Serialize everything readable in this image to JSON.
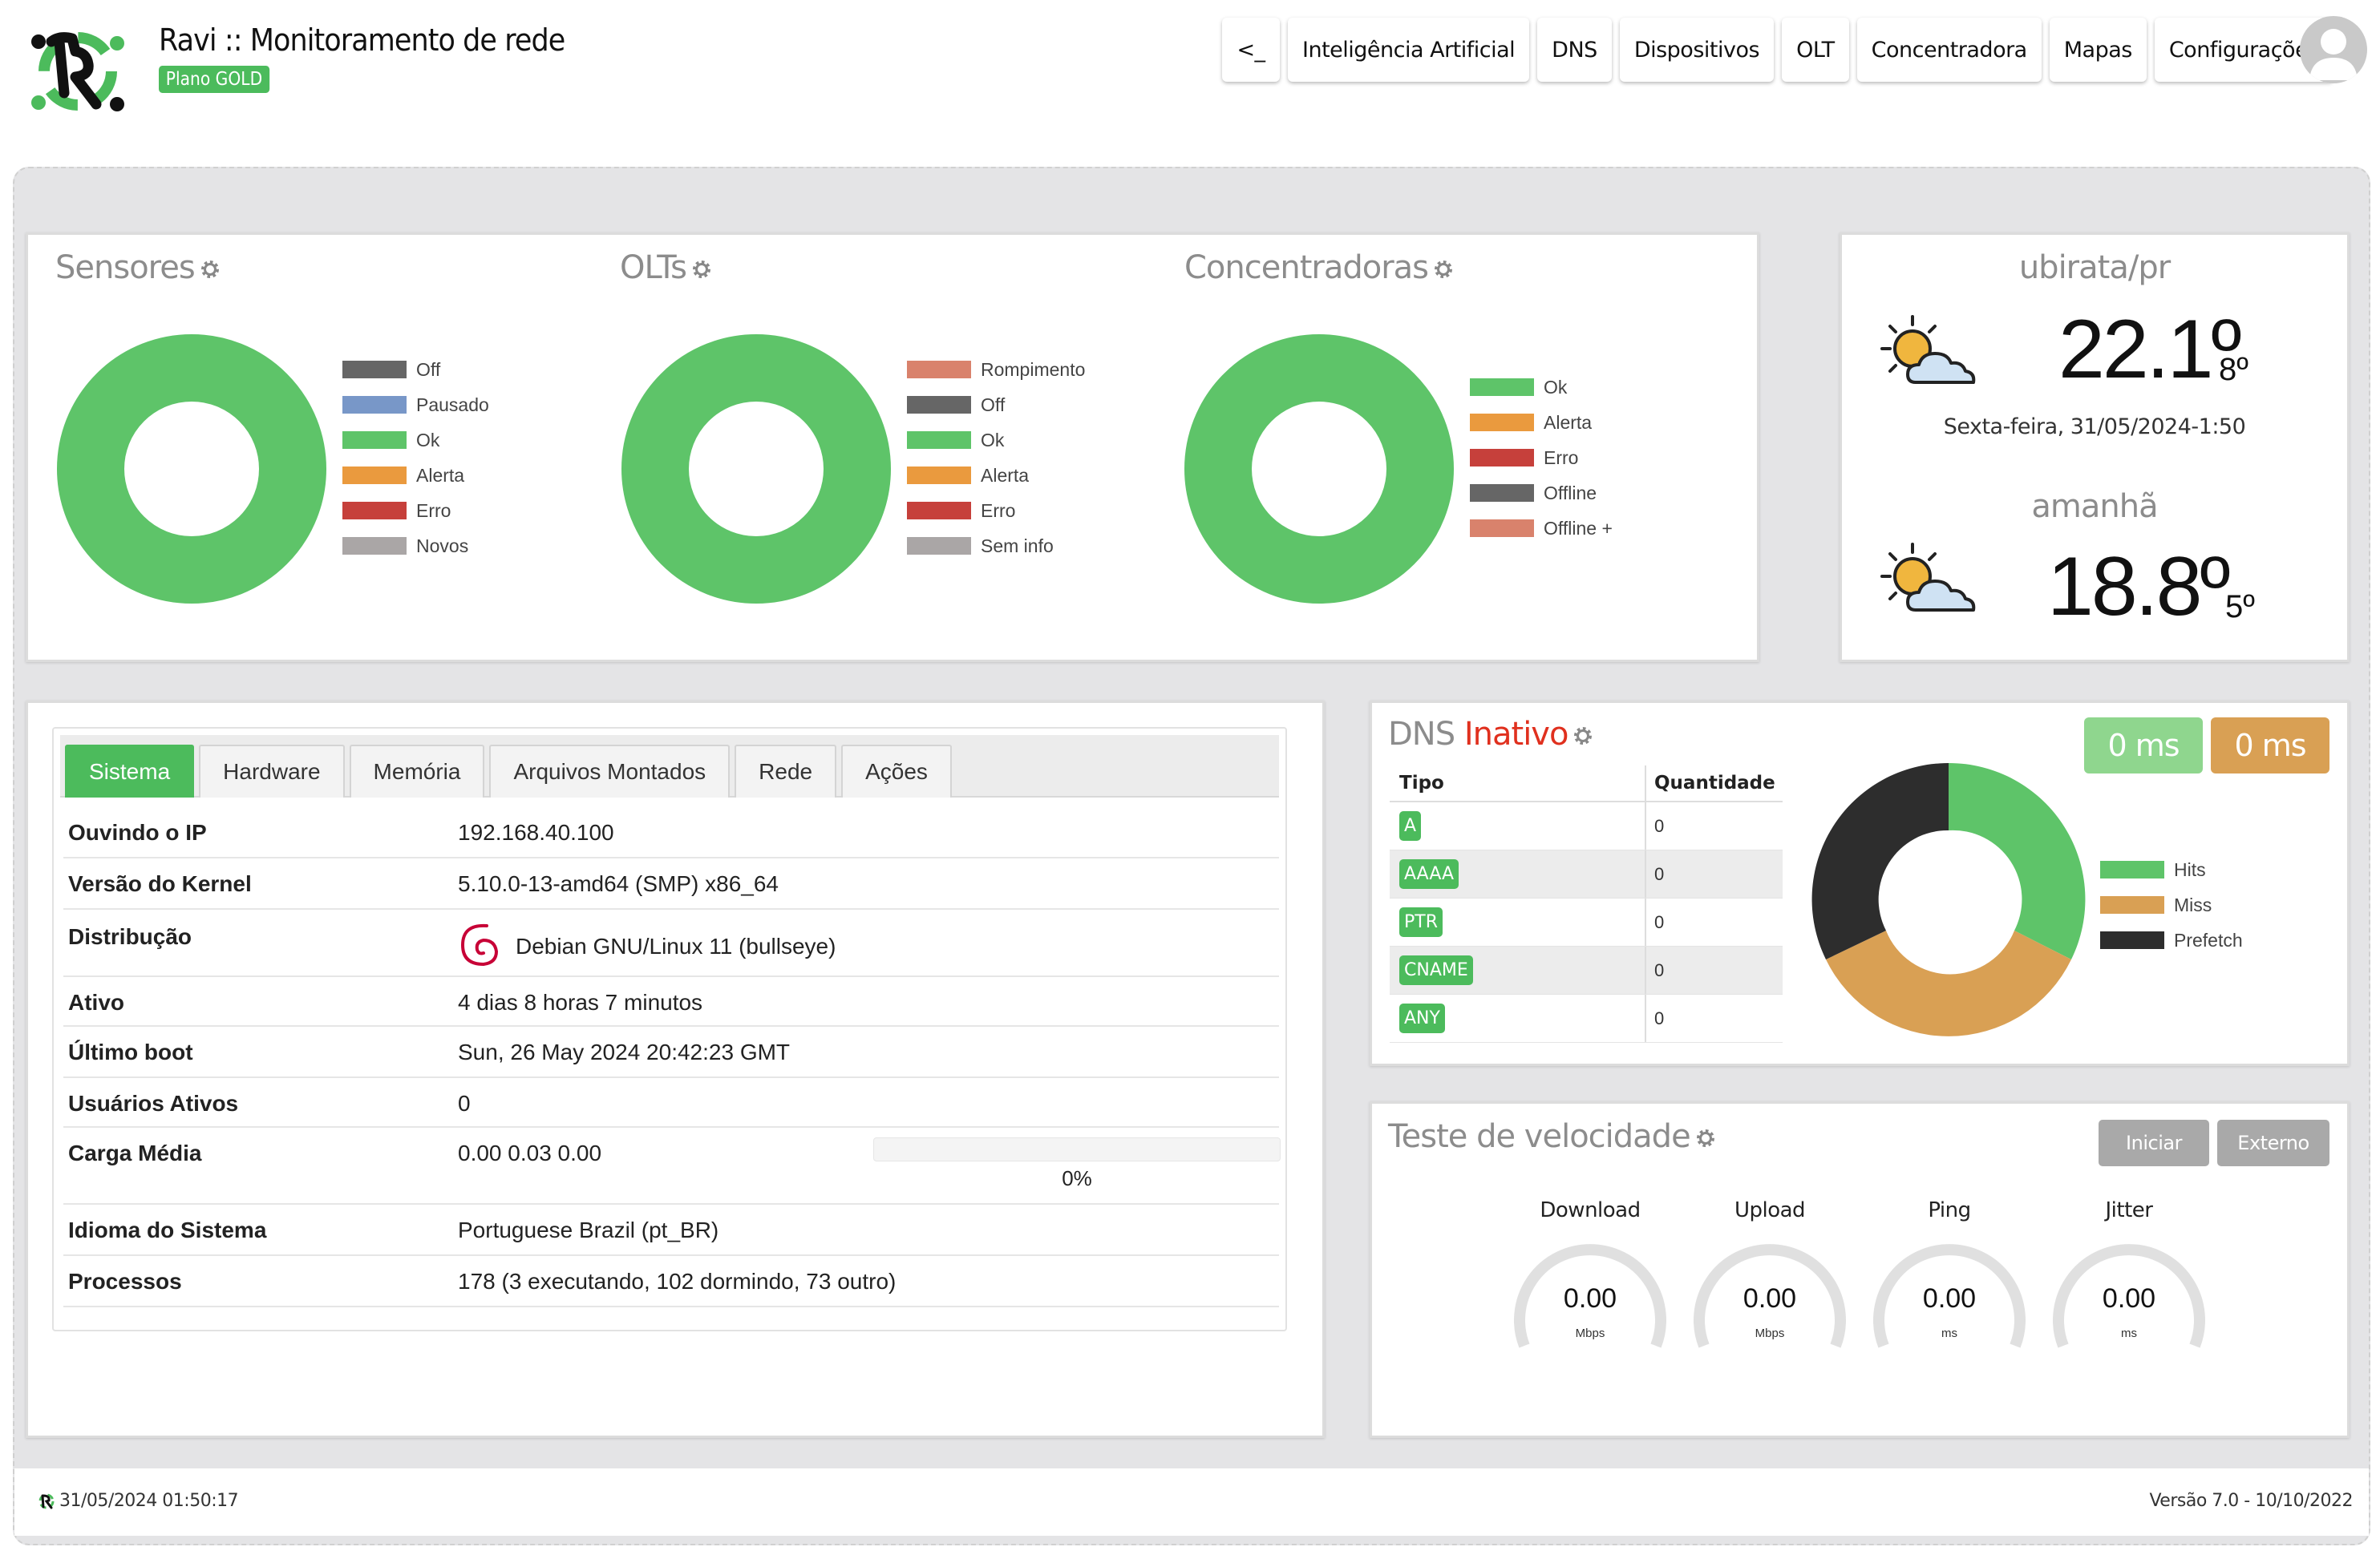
{
  "app": {
    "title": "Ravi :: Monitoramento de rede",
    "plan": "Plano GOLD"
  },
  "nav": {
    "items": [
      "<_",
      "Inteligência Artificial",
      "DNS",
      "Dispositivos",
      "OLT",
      "Concentradora",
      "Mapas",
      "Configurações"
    ]
  },
  "sensores": {
    "title": "Sensores",
    "legend": [
      {
        "label": "Off",
        "color": "#666666"
      },
      {
        "label": "Pausado",
        "color": "#7897c8"
      },
      {
        "label": "Ok",
        "color": "#5ec469"
      },
      {
        "label": "Alerta",
        "color": "#ea9a3e"
      },
      {
        "label": "Erro",
        "color": "#c6403b"
      },
      {
        "label": "Novos",
        "color": "#aaa6a6"
      }
    ]
  },
  "olts": {
    "title": "OLTs",
    "legend": [
      {
        "label": "Rompimento",
        "color": "#d9826c"
      },
      {
        "label": "Off",
        "color": "#666666"
      },
      {
        "label": "Ok",
        "color": "#5ec469"
      },
      {
        "label": "Alerta",
        "color": "#ea9a3e"
      },
      {
        "label": "Erro",
        "color": "#c6403b"
      },
      {
        "label": "Sem info",
        "color": "#aaa6a6"
      }
    ]
  },
  "concentradoras": {
    "title": "Concentradoras",
    "legend": [
      {
        "label": "Ok",
        "color": "#5ec469"
      },
      {
        "label": "Alerta",
        "color": "#ea9a3e"
      },
      {
        "label": "Erro",
        "color": "#c6403b"
      },
      {
        "label": "Offline",
        "color": "#666666"
      },
      {
        "label": "Offline +",
        "color": "#d9826c"
      }
    ]
  },
  "weather": {
    "city": "ubirata/pr",
    "today_temp": "22.1º",
    "today_min": "8º",
    "date": "Sexta-feira, 31/05/2024-1:50",
    "tomorrow_label": "amanhã",
    "tomorrow_temp": "18.8º",
    "tomorrow_min": "5º"
  },
  "system": {
    "tabs": [
      "Sistema",
      "Hardware",
      "Memória",
      "Arquivos Montados",
      "Rede",
      "Ações"
    ],
    "rows": [
      {
        "label": "Ouvindo o IP",
        "value": "192.168.40.100"
      },
      {
        "label": "Versão do Kernel",
        "value": "5.10.0-13-amd64 (SMP) x86_64"
      },
      {
        "label": "Distribução",
        "value": "Debian GNU/Linux 11 (bullseye)"
      },
      {
        "label": "Ativo",
        "value": "4 dias 8 horas 7 minutos"
      },
      {
        "label": "Último boot",
        "value": "Sun, 26 May 2024 20:42:23 GMT"
      },
      {
        "label": "Usuários Ativos",
        "value": "0"
      },
      {
        "label": "Carga Média",
        "value": "0.00 0.03 0.00"
      },
      {
        "label": "Idioma do Sistema",
        "value": "Portuguese Brazil (pt_BR)"
      },
      {
        "label": "Processos",
        "value": "178 (3 executando, 102 dormindo, 73 outro)"
      }
    ],
    "load_percent": "0%",
    "load_fraction": 0
  },
  "dns": {
    "title": "DNS",
    "status": "Inativo",
    "ms_green": "0 ms",
    "ms_orange": "0 ms",
    "col_tipo": "Tipo",
    "col_qtd": "Quantidade",
    "rows": [
      {
        "tipo": "A",
        "qtd": "0"
      },
      {
        "tipo": "AAAA",
        "qtd": "0"
      },
      {
        "tipo": "PTR",
        "qtd": "0"
      },
      {
        "tipo": "CNAME",
        "qtd": "0"
      },
      {
        "tipo": "ANY",
        "qtd": "0"
      }
    ],
    "legend": [
      {
        "label": "Hits",
        "color": "#5ec469"
      },
      {
        "label": "Miss",
        "color": "#d9a054"
      },
      {
        "label": "Prefetch",
        "color": "#2d2d2d"
      }
    ]
  },
  "speed": {
    "title": "Teste de velocidade",
    "btn_start": "Iniciar",
    "btn_external": "Externo",
    "gauges": [
      {
        "label": "Download",
        "value": "0.00",
        "unit": "Mbps"
      },
      {
        "label": "Upload",
        "value": "0.00",
        "unit": "Mbps"
      },
      {
        "label": "Ping",
        "value": "0.00",
        "unit": "ms"
      },
      {
        "label": "Jitter",
        "value": "0.00",
        "unit": "ms"
      }
    ]
  },
  "footer": {
    "timestamp": "31/05/2024 01:50:17",
    "version": "Versão 7.0 - 10/10/2022"
  }
}
